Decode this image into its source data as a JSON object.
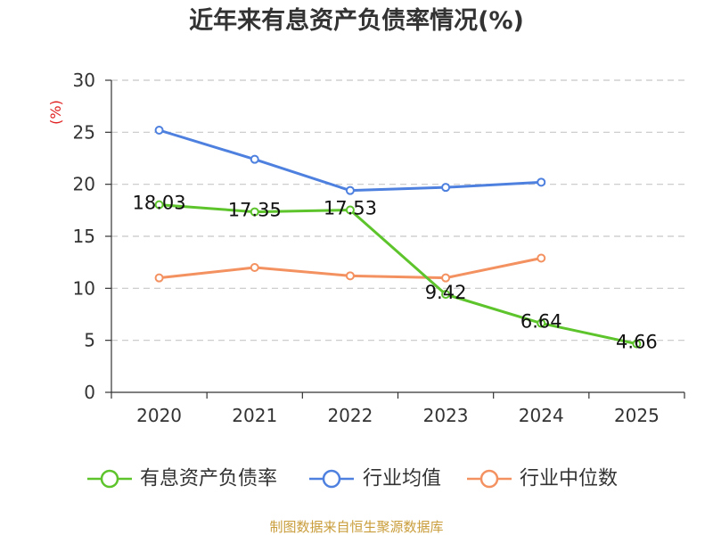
{
  "chart_data": {
    "type": "line",
    "title": "近年来有息资产负债率情况(%)",
    "xlabel": "",
    "ylabel": "(%)",
    "categories": [
      "2020",
      "2021",
      "2022",
      "2023",
      "2024",
      "2025"
    ],
    "ylim": [
      0,
      30
    ],
    "yticks": [
      0,
      5,
      10,
      15,
      20,
      25,
      30
    ],
    "grid": true,
    "legend": "bottom",
    "series": [
      {
        "name": "有息资产负债率",
        "color": "#5dc42c",
        "show_labels": true,
        "values": [
          18.03,
          17.35,
          17.53,
          9.42,
          6.64,
          4.66
        ]
      },
      {
        "name": "行业均值",
        "color": "#4e80df",
        "show_labels": false,
        "values": [
          25.2,
          22.4,
          19.4,
          19.7,
          20.2,
          null
        ]
      },
      {
        "name": "行业中位数",
        "color": "#f49160",
        "show_labels": false,
        "values": [
          11.0,
          12.0,
          11.2,
          11.0,
          12.9,
          null
        ]
      }
    ]
  },
  "footer": "制图数据来自恒生聚源数据库"
}
